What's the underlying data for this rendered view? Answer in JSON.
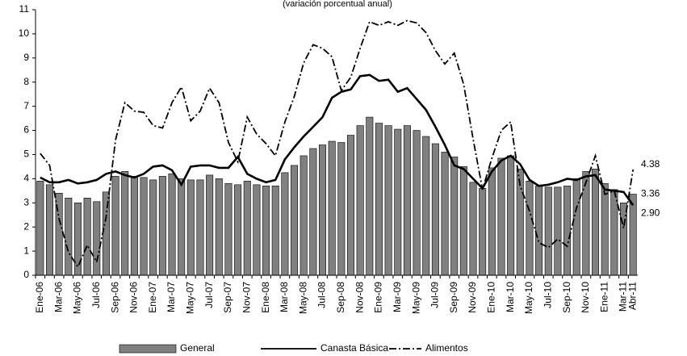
{
  "chart_data": {
    "type": "bar-line",
    "subtitle": "(variación porcentual anual)",
    "categories": [
      "Ene-06",
      null,
      "Mar-06",
      null,
      "May-06",
      null,
      "Jul-06",
      null,
      "Sep-06",
      null,
      "Nov-06",
      null,
      "Ene-07",
      null,
      "Mar-07",
      null,
      "May-07",
      null,
      "Jul-07",
      null,
      "Sep-07",
      null,
      "Nov-07",
      null,
      "Ene-08",
      null,
      "Mar-08",
      null,
      "May-08",
      null,
      "Jul-08",
      null,
      "Sep-08",
      null,
      "Nov-08",
      null,
      "Ene-09",
      null,
      "Mar-09",
      null,
      "May-09",
      null,
      "Jul-09",
      null,
      "Sep-09",
      null,
      "Nov-09",
      null,
      "Ene-10",
      null,
      "Mar-10",
      null,
      "May-10",
      null,
      "Jul-10",
      null,
      "Sep-10",
      null,
      "Nov-10",
      null,
      "Ene-11",
      null,
      "Mar-11",
      "Abr-11"
    ],
    "series": [
      {
        "name": "General",
        "kind": "bar",
        "color": "#808080",
        "end_label": "3.36",
        "values": [
          3.9,
          3.75,
          3.4,
          3.2,
          3.0,
          3.2,
          3.05,
          3.45,
          4.1,
          4.3,
          4.1,
          4.05,
          3.95,
          4.1,
          4.2,
          4.0,
          3.95,
          3.95,
          4.15,
          4.0,
          3.8,
          3.75,
          3.9,
          3.75,
          3.7,
          3.7,
          4.25,
          4.55,
          4.95,
          5.25,
          5.4,
          5.55,
          5.5,
          5.8,
          6.2,
          6.55,
          6.3,
          6.2,
          6.05,
          6.2,
          6.0,
          5.75,
          5.45,
          5.1,
          4.9,
          4.5,
          3.85,
          3.6,
          4.45,
          4.85,
          4.95,
          4.4,
          3.9,
          3.7,
          3.65,
          3.65,
          3.7,
          4.0,
          4.3,
          4.4,
          3.8,
          3.55,
          3.0,
          3.36
        ]
      },
      {
        "name": "Canasta Básica",
        "kind": "line",
        "color": "#000000",
        "dash": "solid",
        "end_label": "2.90",
        "values": [
          4.05,
          3.85,
          3.85,
          3.95,
          3.8,
          3.85,
          3.95,
          4.2,
          4.3,
          4.15,
          4.05,
          4.2,
          4.5,
          4.55,
          4.35,
          3.75,
          4.5,
          4.55,
          4.55,
          4.45,
          4.45,
          4.9,
          4.2,
          4.0,
          3.85,
          3.95,
          4.8,
          5.3,
          5.75,
          6.15,
          6.55,
          7.35,
          7.6,
          7.7,
          8.25,
          8.3,
          8.05,
          8.1,
          7.6,
          7.75,
          7.3,
          6.85,
          6.15,
          5.4,
          4.55,
          4.4,
          4.0,
          3.6,
          4.3,
          4.75,
          4.95,
          4.6,
          3.95,
          3.7,
          3.75,
          3.85,
          4.0,
          3.95,
          4.1,
          4.15,
          3.55,
          3.5,
          3.45,
          2.9
        ]
      },
      {
        "name": "Alimentos",
        "kind": "line",
        "color": "#000000",
        "dash": "dashdot",
        "end_label": "4.38",
        "values": [
          5.05,
          4.55,
          2.35,
          0.95,
          0.35,
          1.25,
          0.55,
          2.4,
          5.6,
          7.15,
          6.8,
          6.75,
          6.2,
          6.1,
          7.15,
          7.8,
          6.4,
          6.8,
          7.75,
          7.15,
          5.5,
          4.7,
          6.55,
          5.85,
          5.45,
          4.95,
          6.35,
          7.4,
          8.8,
          9.55,
          9.4,
          9.05,
          7.65,
          8.2,
          9.4,
          10.5,
          10.35,
          10.5,
          10.35,
          10.55,
          10.45,
          10.05,
          9.3,
          8.75,
          9.2,
          7.9,
          5.65,
          3.55,
          4.85,
          6.0,
          6.35,
          3.7,
          2.65,
          1.35,
          1.15,
          1.5,
          1.2,
          2.8,
          3.85,
          4.95,
          3.35,
          3.5,
          1.95,
          4.38
        ]
      }
    ],
    "ylim": [
      0,
      11
    ],
    "yticks": [
      0,
      1,
      2,
      3,
      4,
      5,
      6,
      7,
      8,
      9,
      10,
      11
    ],
    "legend": "bottom"
  }
}
